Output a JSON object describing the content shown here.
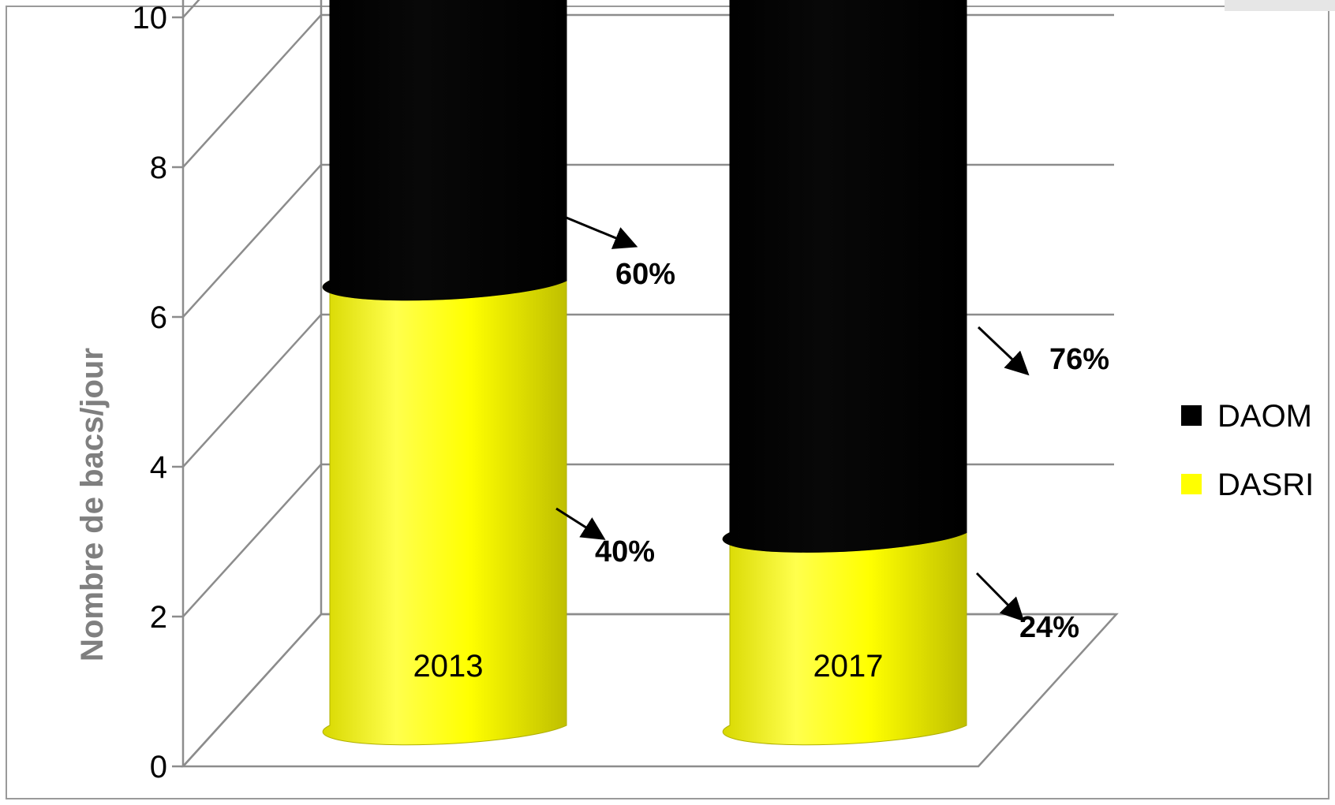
{
  "chart_data": {
    "type": "bar",
    "style": "3d-stacked-cylinder",
    "categories": [
      "2013",
      "2017"
    ],
    "series": [
      {
        "name": "DASRI",
        "values": [
          6,
          2.6
        ],
        "color": "#ffff00",
        "labels": [
          "40%",
          "24%"
        ]
      },
      {
        "name": "DAOM",
        "values": [
          9,
          8.4
        ],
        "color": "#000000",
        "labels": [
          "60%",
          "76%"
        ]
      }
    ],
    "ylabel": "Nombre de bacs/jour",
    "ylim": [
      0,
      14
    ],
    "yticks": [
      "0",
      "2",
      "4",
      "6",
      "8",
      "10",
      "12",
      "14"
    ],
    "grid": true,
    "legend": {
      "position": "right",
      "items": [
        {
          "label": "DAOM",
          "color": "#000000"
        },
        {
          "label": "DASRI",
          "color": "#ffff00"
        }
      ]
    }
  },
  "colors": {
    "grid": "#8c8c8c",
    "axis_label": "#7f7f7f",
    "frame": "#9a9a9a",
    "corner_tab": "#e6e6e6"
  }
}
